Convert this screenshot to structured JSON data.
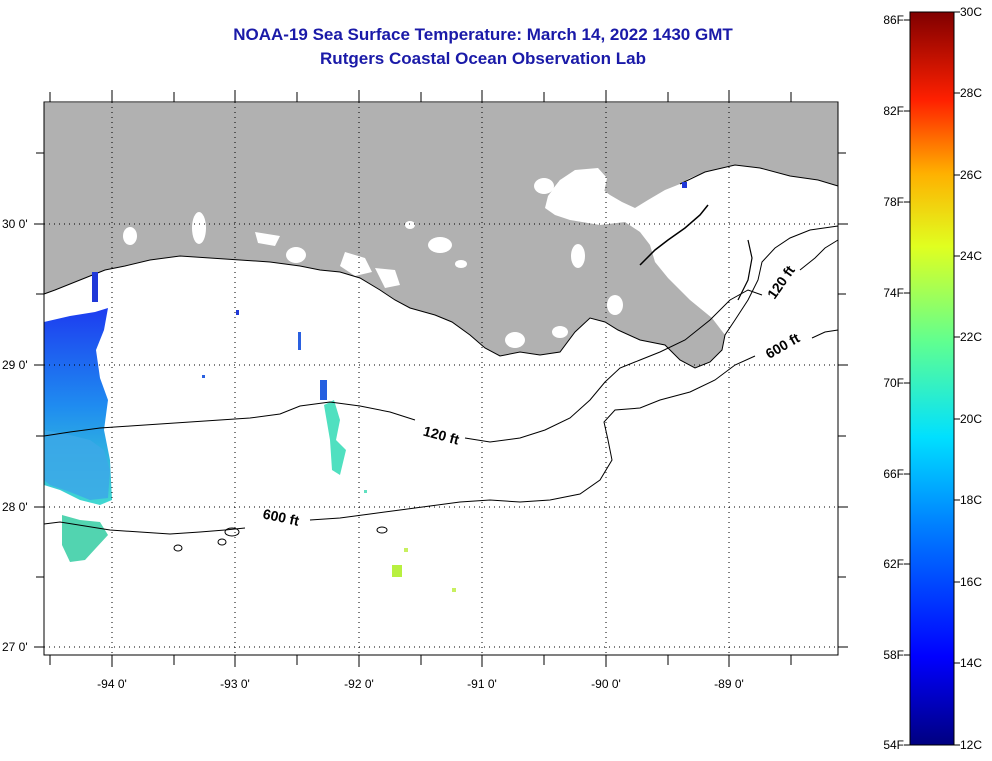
{
  "title": "NOAA-19 Sea Surface Temperature:  March 14, 2022 1430 GMT",
  "subtitle": "Rutgers Coastal Ocean Observation Lab",
  "x_tick_labels": [
    "-94 0'",
    "-93 0'",
    "-92 0'",
    "-91 0'",
    "-90 0'",
    "-89 0'"
  ],
  "y_tick_labels": [
    "30 0'",
    "29 0'",
    "28 0'",
    "27 0'"
  ],
  "contour_labels": [
    "120 ft",
    "600 ft",
    "120 ft",
    "600 ft"
  ],
  "colorbar": {
    "fahrenheit_labels": [
      "86F",
      "82F",
      "78F",
      "74F",
      "70F",
      "66F",
      "62F",
      "58F",
      "54F"
    ],
    "celsius_labels": [
      "30C",
      "28C",
      "26C",
      "24C",
      "22C",
      "20C",
      "18C",
      "16C",
      "14C",
      "12C"
    ],
    "range_c": [
      12,
      30
    ],
    "colors": [
      "#000080",
      "#0000ff",
      "#0080ff",
      "#00ffff",
      "#80ff80",
      "#ffff00",
      "#ff8000",
      "#ff0000",
      "#800000"
    ]
  },
  "colors": {
    "land": "#b1b1b1",
    "title": "#1a1aa8",
    "ocean": "#ffffff"
  }
}
